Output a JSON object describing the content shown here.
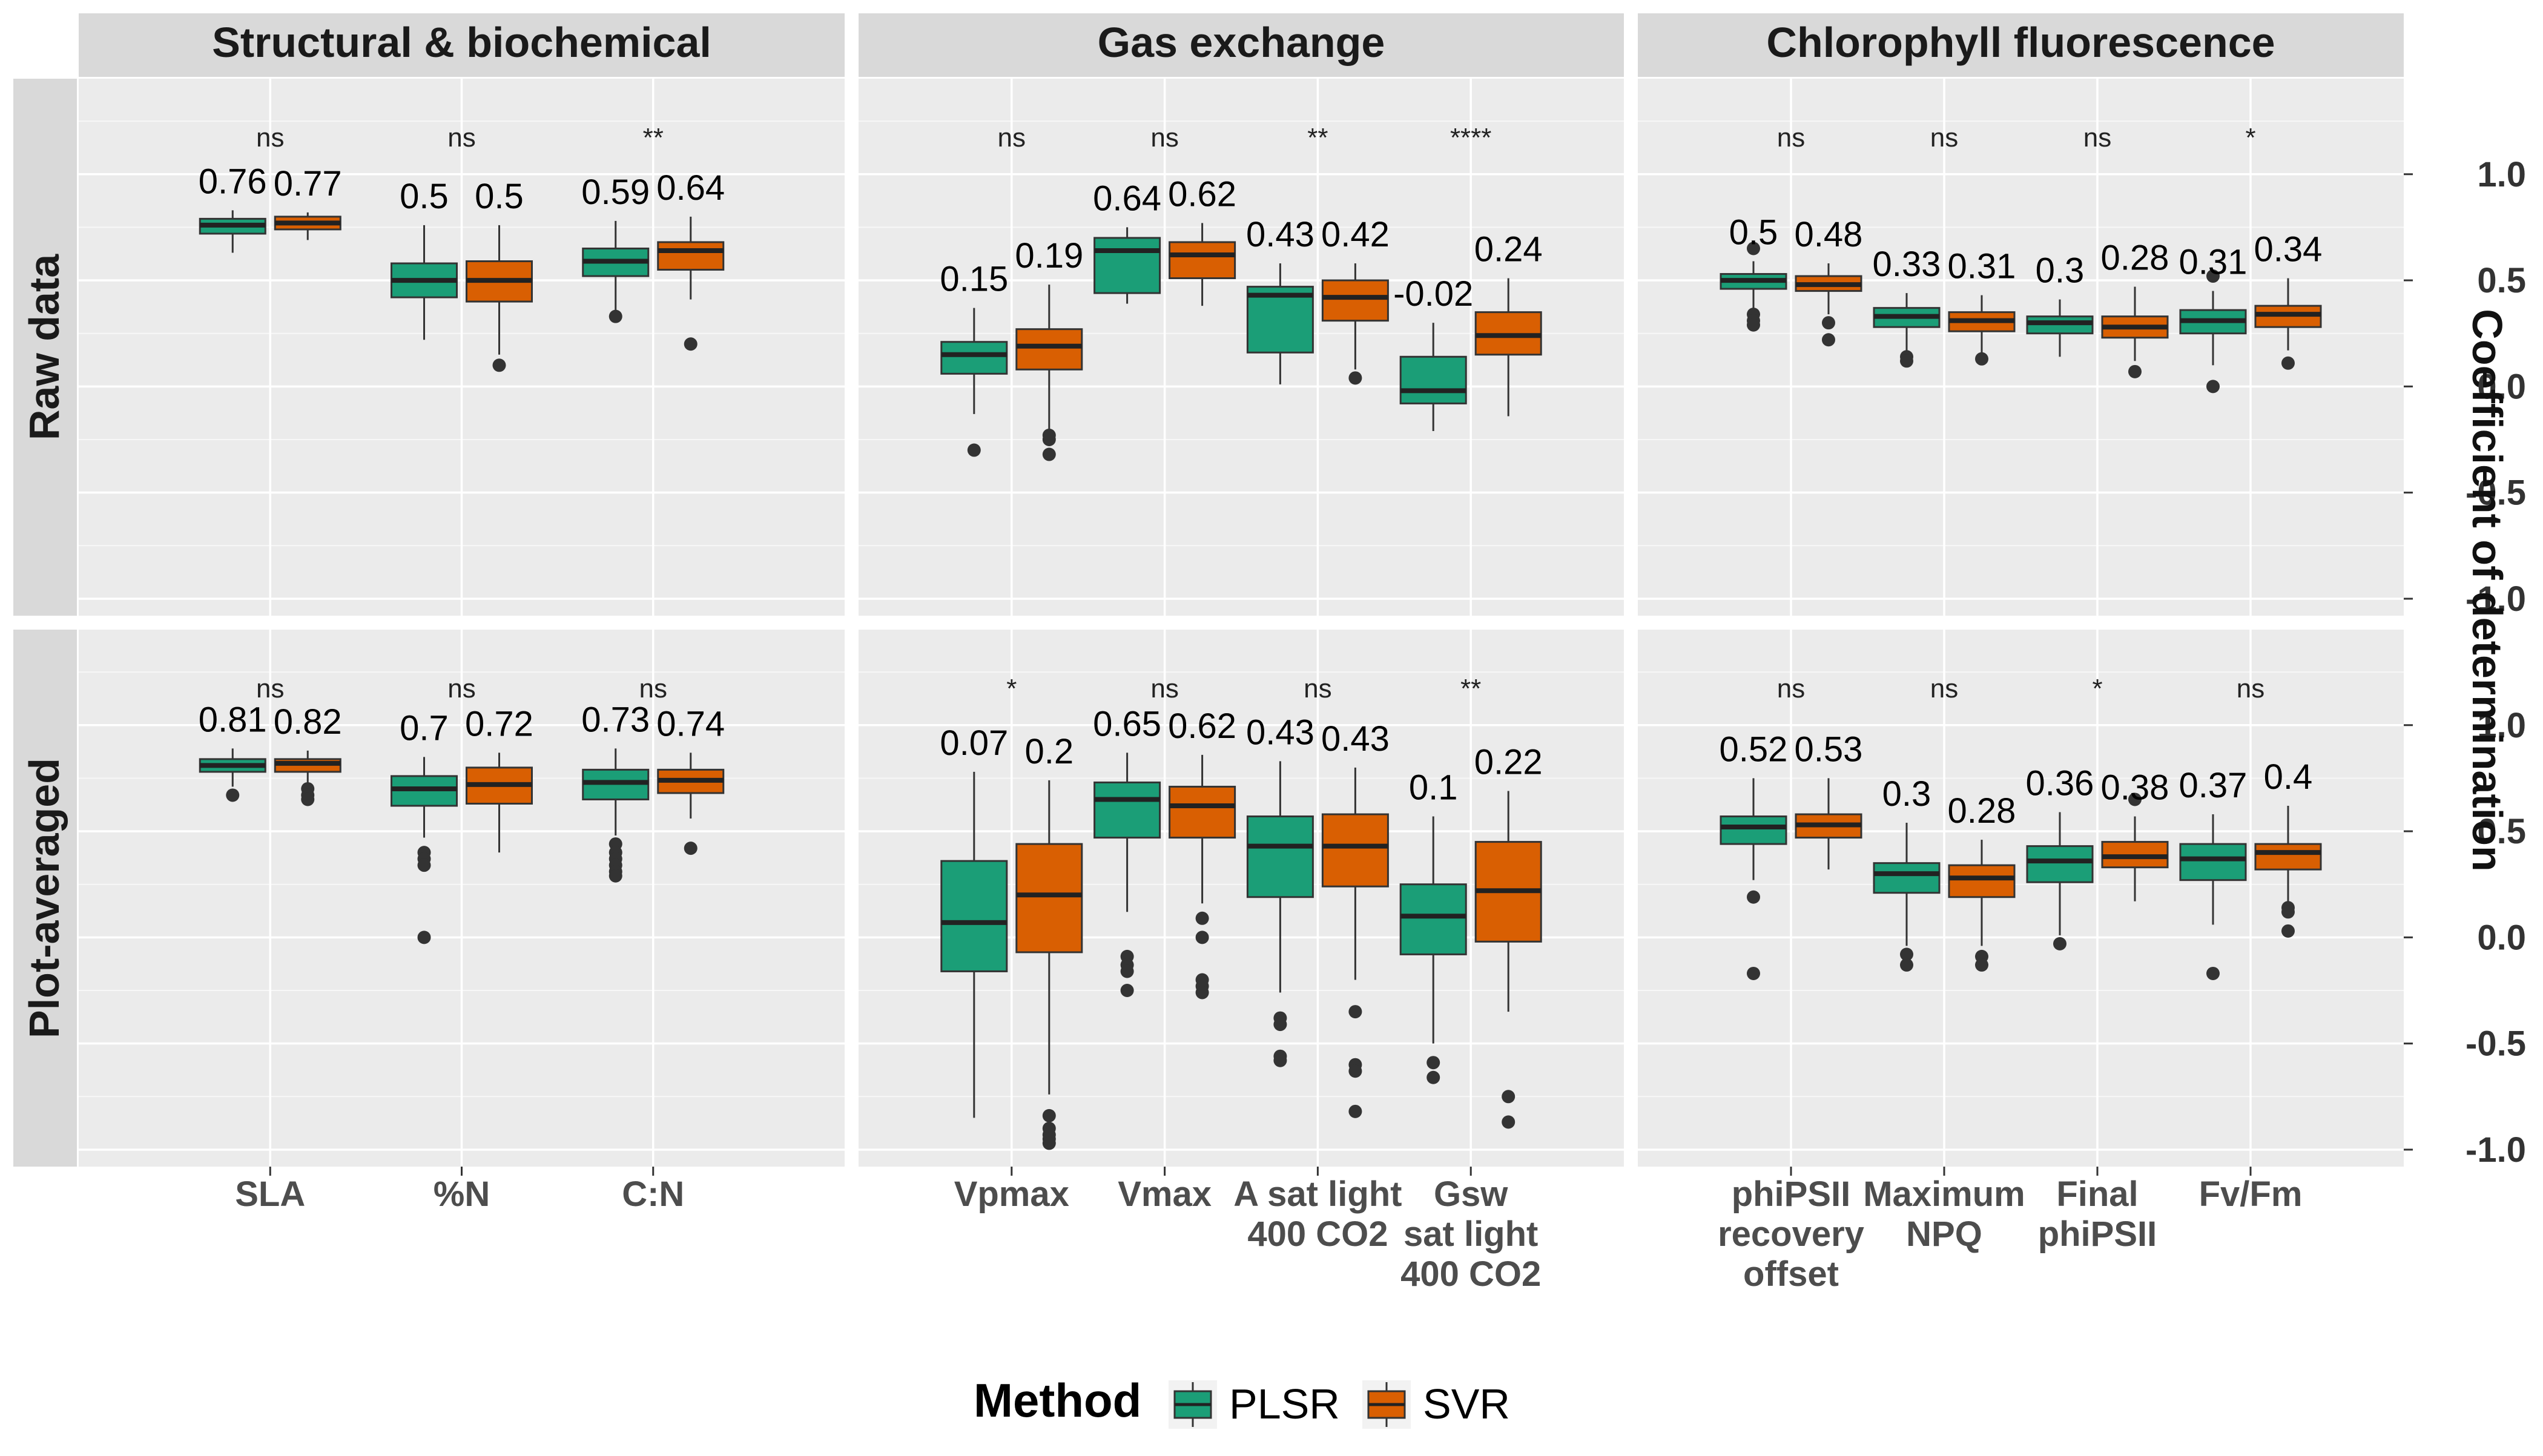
{
  "chart_data": {
    "type": "box",
    "legend": {
      "title": "Method",
      "position": "bottom",
      "items": [
        {
          "name": "PLSR",
          "color": "#1b9e77"
        },
        {
          "name": "SVR",
          "color": "#d95f02"
        }
      ]
    },
    "y_axis": {
      "title": "Coefficient of determination",
      "position": "right",
      "ticks": [
        "1.0",
        "0.5",
        "0.0",
        "-0.5",
        "-1.0"
      ],
      "tick_values": [
        1.0,
        0.5,
        0.0,
        -0.5,
        -1.0
      ],
      "range": [
        -1.08,
        1.45
      ]
    },
    "rows": [
      "Raw data",
      "Plot-averaged"
    ],
    "columns": [
      {
        "name": "Structural & biochemical",
        "traits": [
          "SLA",
          "%N",
          "C:N"
        ]
      },
      {
        "name": "Gas exchange",
        "traits": [
          "Vpmax",
          "Vmax",
          "A sat light\n400 CO2",
          "Gsw\nsat light\n400 CO2"
        ]
      },
      {
        "name": "Chlorophyll fluorescence",
        "traits": [
          "phiPSII\nrecovery\noffset",
          "Maximum\nNPQ",
          "Final\nphiPSII",
          "Fv/Fm"
        ]
      }
    ],
    "panels": [
      {
        "row": "Raw data",
        "column": "Structural & biochemical",
        "groups": [
          {
            "trait": "SLA",
            "signif": "ns",
            "PLSR": {
              "label": "0.76",
              "whisker_low": 0.63,
              "q1": 0.72,
              "median": 0.76,
              "q3": 0.79,
              "whisker_high": 0.83,
              "outliers": []
            },
            "SVR": {
              "label": "0.77",
              "whisker_low": 0.69,
              "q1": 0.74,
              "median": 0.77,
              "q3": 0.8,
              "whisker_high": 0.82,
              "outliers": []
            }
          },
          {
            "trait": "%N",
            "signif": "ns",
            "PLSR": {
              "label": "0.5",
              "whisker_low": 0.22,
              "q1": 0.42,
              "median": 0.5,
              "q3": 0.58,
              "whisker_high": 0.76,
              "outliers": []
            },
            "SVR": {
              "label": "0.5",
              "whisker_low": 0.15,
              "q1": 0.4,
              "median": 0.5,
              "q3": 0.59,
              "whisker_high": 0.76,
              "outliers": [
                0.1
              ]
            }
          },
          {
            "trait": "C:N",
            "signif": "**",
            "PLSR": {
              "label": "0.59",
              "whisker_low": 0.36,
              "q1": 0.52,
              "median": 0.59,
              "q3": 0.65,
              "whisker_high": 0.78,
              "outliers": [
                0.33
              ]
            },
            "SVR": {
              "label": "0.64",
              "whisker_low": 0.41,
              "q1": 0.55,
              "median": 0.64,
              "q3": 0.68,
              "whisker_high": 0.8,
              "outliers": [
                0.2
              ]
            }
          }
        ]
      },
      {
        "row": "Raw data",
        "column": "Gas exchange",
        "groups": [
          {
            "trait": "Vpmax",
            "signif": "ns",
            "PLSR": {
              "label": "0.15",
              "whisker_low": -0.13,
              "q1": 0.06,
              "median": 0.15,
              "q3": 0.21,
              "whisker_high": 0.37,
              "outliers": [
                -0.3
              ]
            },
            "SVR": {
              "label": "0.19",
              "whisker_low": -0.2,
              "q1": 0.08,
              "median": 0.19,
              "q3": 0.27,
              "whisker_high": 0.48,
              "outliers": [
                -0.23,
                -0.25,
                -0.32
              ]
            }
          },
          {
            "trait": "Vmax",
            "signif": "ns",
            "PLSR": {
              "label": "0.64",
              "whisker_low": 0.39,
              "q1": 0.44,
              "median": 0.64,
              "q3": 0.7,
              "whisker_high": 0.75,
              "outliers": []
            },
            "SVR": {
              "label": "0.62",
              "whisker_low": 0.38,
              "q1": 0.51,
              "median": 0.62,
              "q3": 0.68,
              "whisker_high": 0.77,
              "outliers": []
            }
          },
          {
            "trait": "A sat light\n400 CO2",
            "signif": "**",
            "PLSR": {
              "label": "0.43",
              "whisker_low": 0.01,
              "q1": 0.16,
              "median": 0.43,
              "q3": 0.47,
              "whisker_high": 0.58,
              "outliers": []
            },
            "SVR": {
              "label": "0.42",
              "whisker_low": 0.08,
              "q1": 0.31,
              "median": 0.42,
              "q3": 0.5,
              "whisker_high": 0.58,
              "outliers": [
                0.04
              ]
            }
          },
          {
            "trait": "Gsw\nsat light\n400 CO2",
            "signif": "****",
            "PLSR": {
              "label": "-0.02",
              "whisker_low": -0.21,
              "q1": -0.08,
              "median": -0.02,
              "q3": 0.14,
              "whisker_high": 0.3,
              "outliers": []
            },
            "SVR": {
              "label": "0.24",
              "whisker_low": -0.14,
              "q1": 0.15,
              "median": 0.24,
              "q3": 0.35,
              "whisker_high": 0.51,
              "outliers": []
            }
          }
        ]
      },
      {
        "row": "Raw data",
        "column": "Chlorophyll fluorescence",
        "groups": [
          {
            "trait": "phiPSII\nrecovery\noffset",
            "signif": "ns",
            "PLSR": {
              "label": "0.5",
              "whisker_low": 0.37,
              "q1": 0.46,
              "median": 0.5,
              "q3": 0.53,
              "whisker_high": 0.59,
              "outliers": [
                0.65,
                0.34,
                0.31,
                0.29
              ]
            },
            "SVR": {
              "label": "0.48",
              "whisker_low": 0.34,
              "q1": 0.45,
              "median": 0.48,
              "q3": 0.52,
              "whisker_high": 0.58,
              "outliers": [
                0.3,
                0.22
              ]
            }
          },
          {
            "trait": "Maximum\nNPQ",
            "signif": "ns",
            "PLSR": {
              "label": "0.33",
              "whisker_low": 0.16,
              "q1": 0.28,
              "median": 0.33,
              "q3": 0.37,
              "whisker_high": 0.44,
              "outliers": [
                0.14,
                0.12
              ]
            },
            "SVR": {
              "label": "0.31",
              "whisker_low": 0.16,
              "q1": 0.26,
              "median": 0.31,
              "q3": 0.35,
              "whisker_high": 0.43,
              "outliers": [
                0.13
              ]
            }
          },
          {
            "trait": "Final\nphiPSII",
            "signif": "ns",
            "PLSR": {
              "label": "0.3",
              "whisker_low": 0.14,
              "q1": 0.25,
              "median": 0.3,
              "q3": 0.33,
              "whisker_high": 0.41,
              "outliers": []
            },
            "SVR": {
              "label": "0.28",
              "whisker_low": 0.12,
              "q1": 0.23,
              "median": 0.28,
              "q3": 0.33,
              "whisker_high": 0.47,
              "outliers": [
                0.07
              ]
            }
          },
          {
            "trait": "Fv/Fm",
            "signif": "*",
            "PLSR": {
              "label": "0.31",
              "whisker_low": 0.1,
              "q1": 0.25,
              "median": 0.31,
              "q3": 0.36,
              "whisker_high": 0.45,
              "outliers": [
                0.52,
                0.0
              ]
            },
            "SVR": {
              "label": "0.34",
              "whisker_low": 0.17,
              "q1": 0.28,
              "median": 0.34,
              "q3": 0.38,
              "whisker_high": 0.51,
              "outliers": [
                0.11
              ]
            }
          }
        ]
      },
      {
        "row": "Plot-averaged",
        "column": "Structural & biochemical",
        "groups": [
          {
            "trait": "SLA",
            "signif": "ns",
            "PLSR": {
              "label": "0.81",
              "whisker_low": 0.71,
              "q1": 0.78,
              "median": 0.81,
              "q3": 0.84,
              "whisker_high": 0.89,
              "outliers": [
                0.67
              ]
            },
            "SVR": {
              "label": "0.82",
              "whisker_low": 0.72,
              "q1": 0.78,
              "median": 0.82,
              "q3": 0.84,
              "whisker_high": 0.88,
              "outliers": [
                0.7,
                0.67,
                0.65
              ]
            }
          },
          {
            "trait": "%N",
            "signif": "ns",
            "PLSR": {
              "label": "0.7",
              "whisker_low": 0.47,
              "q1": 0.62,
              "median": 0.7,
              "q3": 0.76,
              "whisker_high": 0.85,
              "outliers": [
                0.4,
                0.37,
                0.34,
                0.0
              ]
            },
            "SVR": {
              "label": "0.72",
              "whisker_low": 0.4,
              "q1": 0.63,
              "median": 0.72,
              "q3": 0.8,
              "whisker_high": 0.87,
              "outliers": []
            }
          },
          {
            "trait": "C:N",
            "signif": "ns",
            "PLSR": {
              "label": "0.73",
              "whisker_low": 0.48,
              "q1": 0.65,
              "median": 0.73,
              "q3": 0.79,
              "whisker_high": 0.89,
              "outliers": [
                0.44,
                0.4,
                0.37,
                0.34,
                0.31,
                0.29
              ]
            },
            "SVR": {
              "label": "0.74",
              "whisker_low": 0.56,
              "q1": 0.68,
              "median": 0.74,
              "q3": 0.79,
              "whisker_high": 0.87,
              "outliers": [
                0.42
              ]
            }
          }
        ]
      },
      {
        "row": "Plot-averaged",
        "column": "Gas exchange",
        "groups": [
          {
            "trait": "Vpmax",
            "signif": "*",
            "PLSR": {
              "label": "0.07",
              "whisker_low": -0.85,
              "q1": -0.16,
              "median": 0.07,
              "q3": 0.36,
              "whisker_high": 0.78,
              "outliers": []
            },
            "SVR": {
              "label": "0.2",
              "whisker_low": -0.74,
              "q1": -0.07,
              "median": 0.2,
              "q3": 0.44,
              "whisker_high": 0.74,
              "outliers": [
                -0.84,
                -0.9,
                -0.93,
                -0.95,
                -0.97
              ]
            }
          },
          {
            "trait": "Vmax",
            "signif": "ns",
            "PLSR": {
              "label": "0.65",
              "whisker_low": 0.12,
              "q1": 0.47,
              "median": 0.65,
              "q3": 0.73,
              "whisker_high": 0.87,
              "outliers": [
                -0.09,
                -0.13,
                -0.16,
                -0.25
              ]
            },
            "SVR": {
              "label": "0.62",
              "whisker_low": 0.16,
              "q1": 0.47,
              "median": 0.62,
              "q3": 0.71,
              "whisker_high": 0.86,
              "outliers": [
                0.09,
                0.0,
                -0.2,
                -0.23,
                -0.26
              ]
            }
          },
          {
            "trait": "A sat light\n400 CO2",
            "signif": "ns",
            "PLSR": {
              "label": "0.43",
              "whisker_low": -0.26,
              "q1": 0.19,
              "median": 0.43,
              "q3": 0.57,
              "whisker_high": 0.83,
              "outliers": [
                -0.38,
                -0.41,
                -0.56,
                -0.58
              ]
            },
            "SVR": {
              "label": "0.43",
              "whisker_low": -0.2,
              "q1": 0.24,
              "median": 0.43,
              "q3": 0.58,
              "whisker_high": 0.8,
              "outliers": [
                -0.35,
                -0.6,
                -0.63,
                -0.82
              ]
            }
          },
          {
            "trait": "Gsw\nsat light\n400 CO2",
            "signif": "**",
            "PLSR": {
              "label": "0.1",
              "whisker_low": -0.5,
              "q1": -0.08,
              "median": 0.1,
              "q3": 0.25,
              "whisker_high": 0.57,
              "outliers": [
                -0.59,
                -0.66
              ]
            },
            "SVR": {
              "label": "0.22",
              "whisker_low": -0.35,
              "q1": -0.02,
              "median": 0.22,
              "q3": 0.45,
              "whisker_high": 0.69,
              "outliers": [
                -0.75,
                -0.87
              ]
            }
          }
        ]
      },
      {
        "row": "Plot-averaged",
        "column": "Chlorophyll fluorescence",
        "groups": [
          {
            "trait": "phiPSII\nrecovery\noffset",
            "signif": "ns",
            "PLSR": {
              "label": "0.52",
              "whisker_low": 0.27,
              "q1": 0.44,
              "median": 0.52,
              "q3": 0.57,
              "whisker_high": 0.75,
              "outliers": [
                0.19,
                -0.17
              ]
            },
            "SVR": {
              "label": "0.53",
              "whisker_low": 0.32,
              "q1": 0.47,
              "median": 0.53,
              "q3": 0.58,
              "whisker_high": 0.75,
              "outliers": []
            }
          },
          {
            "trait": "Maximum\nNPQ",
            "signif": "ns",
            "PLSR": {
              "label": "0.3",
              "whisker_low": -0.04,
              "q1": 0.21,
              "median": 0.3,
              "q3": 0.35,
              "whisker_high": 0.54,
              "outliers": [
                -0.08,
                -0.13
              ]
            },
            "SVR": {
              "label": "0.28",
              "whisker_low": -0.04,
              "q1": 0.19,
              "median": 0.28,
              "q3": 0.34,
              "whisker_high": 0.46,
              "outliers": [
                -0.09,
                -0.13
              ]
            }
          },
          {
            "trait": "Final\nphiPSII",
            "signif": "*",
            "PLSR": {
              "label": "0.36",
              "whisker_low": 0.01,
              "q1": 0.26,
              "median": 0.36,
              "q3": 0.43,
              "whisker_high": 0.59,
              "outliers": [
                -0.03
              ]
            },
            "SVR": {
              "label": "0.38",
              "whisker_low": 0.17,
              "q1": 0.33,
              "median": 0.38,
              "q3": 0.45,
              "whisker_high": 0.57,
              "outliers": [
                0.65
              ]
            }
          },
          {
            "trait": "Fv/Fm",
            "signif": "ns",
            "PLSR": {
              "label": "0.37",
              "whisker_low": 0.06,
              "q1": 0.27,
              "median": 0.37,
              "q3": 0.44,
              "whisker_high": 0.58,
              "outliers": [
                -0.17
              ]
            },
            "SVR": {
              "label": "0.4",
              "whisker_low": 0.15,
              "q1": 0.32,
              "median": 0.4,
              "q3": 0.44,
              "whisker_high": 0.62,
              "outliers": [
                0.14,
                0.12,
                0.03
              ]
            }
          }
        ]
      }
    ]
  }
}
